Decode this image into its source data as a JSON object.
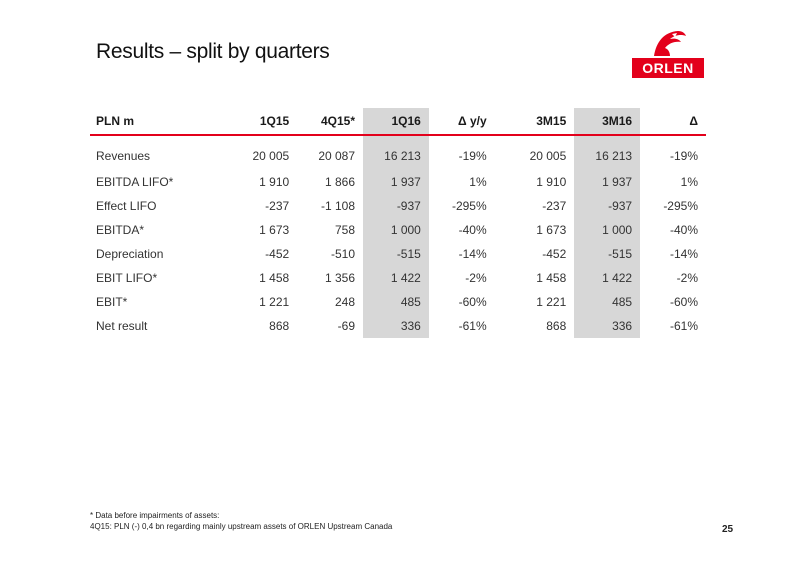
{
  "title": "Results – split by quarters",
  "logo": {
    "text": "ORLEN",
    "icon": "eagle-head-icon",
    "brand_color": "#e3001b"
  },
  "table": {
    "headers": {
      "unit": "PLN m",
      "c1": "1Q15",
      "c2": "4Q15*",
      "c3": "1Q16",
      "c4": "Δ y/y",
      "c5": "3M15",
      "c6": "3M16",
      "c7": "Δ"
    },
    "rows": [
      {
        "label": "Revenues",
        "v": [
          "20 005",
          "20 087",
          "16 213",
          "-19%",
          "20 005",
          "16 213",
          "-19%"
        ]
      },
      {
        "label": "EBITDA LIFO*",
        "v": [
          "1 910",
          "1 866",
          "1 937",
          "1%",
          "1 910",
          "1 937",
          "1%"
        ]
      },
      {
        "label": "Effect LIFO",
        "v": [
          "-237",
          "-1 108",
          "-937",
          "-295%",
          "-237",
          "-937",
          "-295%"
        ]
      },
      {
        "label": "EBITDA*",
        "v": [
          "1 673",
          "758",
          "1 000",
          "-40%",
          "1 673",
          "1 000",
          "-40%"
        ]
      },
      {
        "label": "Depreciation",
        "v": [
          "-452",
          "-510",
          "-515",
          "-14%",
          "-452",
          "-515",
          "-14%"
        ]
      },
      {
        "label": "EBIT LIFO*",
        "v": [
          "1 458",
          "1 356",
          "1 422",
          "-2%",
          "1 458",
          "1 422",
          "-2%"
        ]
      },
      {
        "label": "EBIT*",
        "v": [
          "1 221",
          "248",
          "485",
          "-60%",
          "1 221",
          "485",
          "-60%"
        ]
      },
      {
        "label": "Net result",
        "v": [
          "868",
          "-69",
          "336",
          "-61%",
          "868",
          "336",
          "-61%"
        ]
      }
    ],
    "highlight_color": "#d7d7d7",
    "rule_color": "#e3001b"
  },
  "footnote": {
    "line1": "* Data before impairments of assets:",
    "line2": "4Q15: PLN (-) 0,4 bn regarding mainly upstream assets of ORLEN Upstream Canada"
  },
  "page_number": "25"
}
